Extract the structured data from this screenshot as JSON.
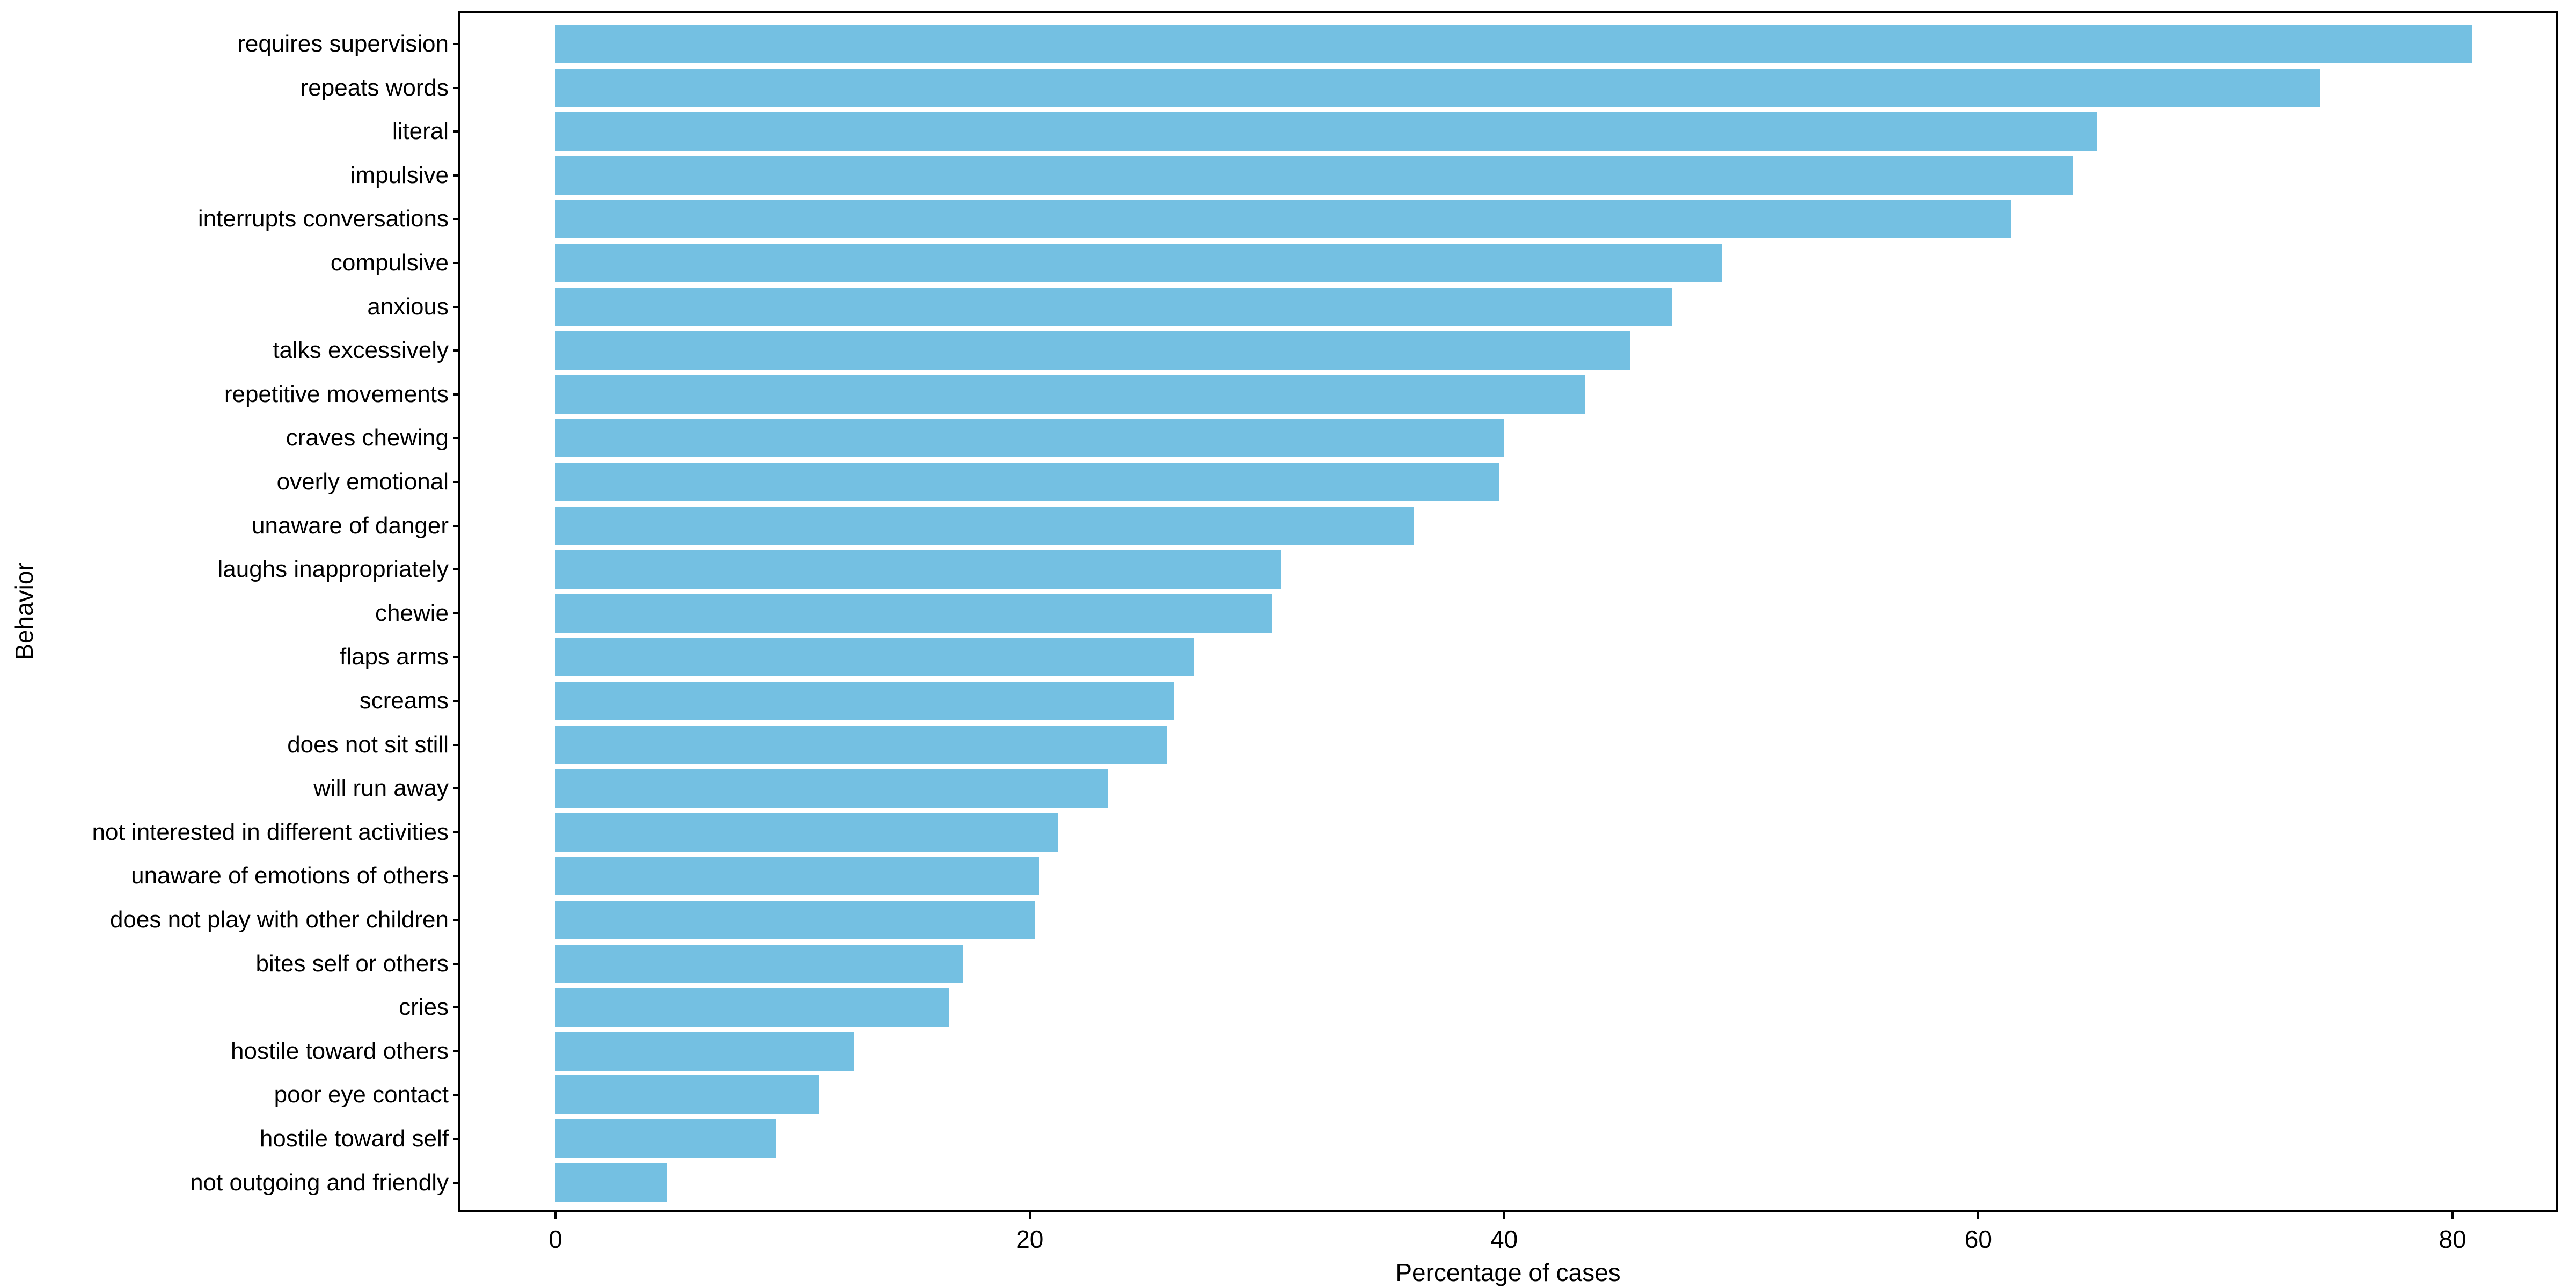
{
  "chart_data": {
    "type": "bar",
    "orientation": "horizontal",
    "title": "",
    "xlabel": "Percentage of cases",
    "ylabel": "Behavior",
    "categories": [
      "requires supervision",
      "repeats words",
      "literal",
      "impulsive",
      "interrupts conversations",
      "compulsive",
      "anxious",
      "talks excessively",
      "repetitive movements",
      "craves chewing",
      "overly emotional",
      "unaware of danger",
      "laughs inappropriately",
      "chewie",
      "flaps arms",
      "screams",
      "does not sit still",
      "will run away",
      "not interested in different activities",
      "unaware of emotions of others",
      "does not play with other children",
      "bites self or others",
      "cries",
      "hostile toward others",
      "poor eye contact",
      "hostile toward self",
      "not outgoing and friendly"
    ],
    "values": [
      80.8,
      74.4,
      65.0,
      64.0,
      61.4,
      49.2,
      47.1,
      45.3,
      43.4,
      40.0,
      39.8,
      36.2,
      30.6,
      30.2,
      26.9,
      26.1,
      25.8,
      23.3,
      21.2,
      20.4,
      20.2,
      17.2,
      16.6,
      12.6,
      11.1,
      9.3,
      4.7
    ],
    "x_ticks": [
      0,
      20,
      40,
      60,
      80
    ],
    "xlim": [
      -4.0,
      84.8
    ],
    "bar_color": "#74c0e2",
    "axis_color": "#000000",
    "background_color": "#ffffff",
    "grid": false,
    "legend": false
  }
}
